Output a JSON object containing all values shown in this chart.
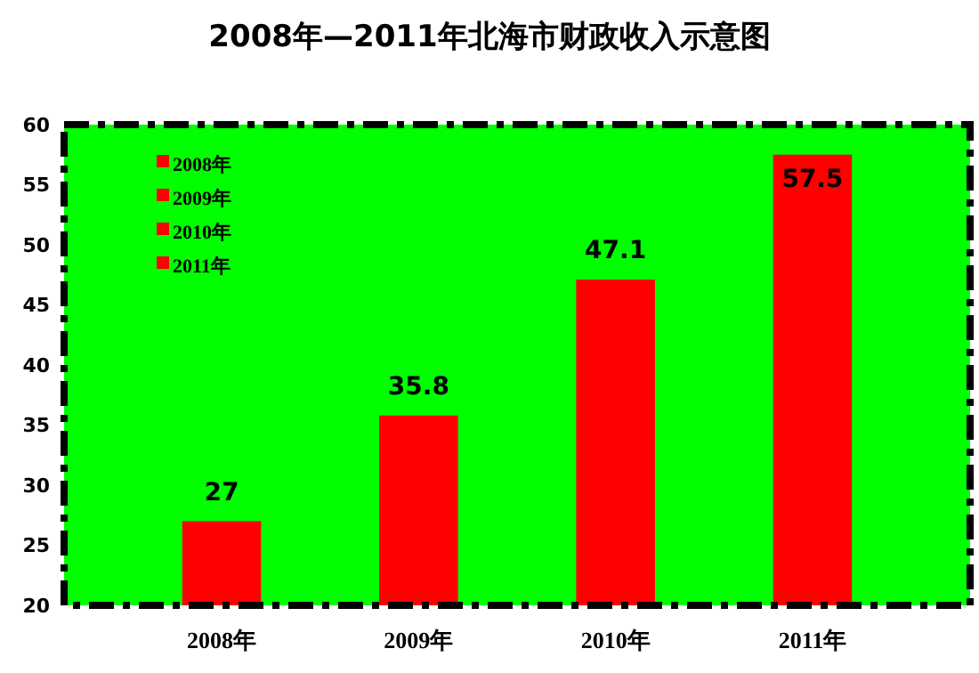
{
  "chart_data": {
    "type": "bar",
    "title": "2008年—2011年北海市财政收入示意图",
    "categories": [
      "2008年",
      "2009年",
      "2010年",
      "2011年"
    ],
    "series": [
      {
        "name": "2008年",
        "color": "#ff0000",
        "values": [
          27,
          null,
          null,
          null
        ]
      },
      {
        "name": "2009年",
        "color": "#ff0000",
        "values": [
          null,
          35.8,
          null,
          null
        ]
      },
      {
        "name": "2010年",
        "color": "#ff0000",
        "values": [
          null,
          null,
          47.1,
          null
        ]
      },
      {
        "name": "2011年",
        "color": "#ff0000",
        "values": [
          null,
          null,
          null,
          57.5
        ]
      }
    ],
    "ylim": [
      20,
      60
    ],
    "yticks": [
      20,
      25,
      30,
      35,
      40,
      45,
      50,
      55,
      60
    ],
    "data_labels": true,
    "legend": "top left",
    "grid": false
  }
}
